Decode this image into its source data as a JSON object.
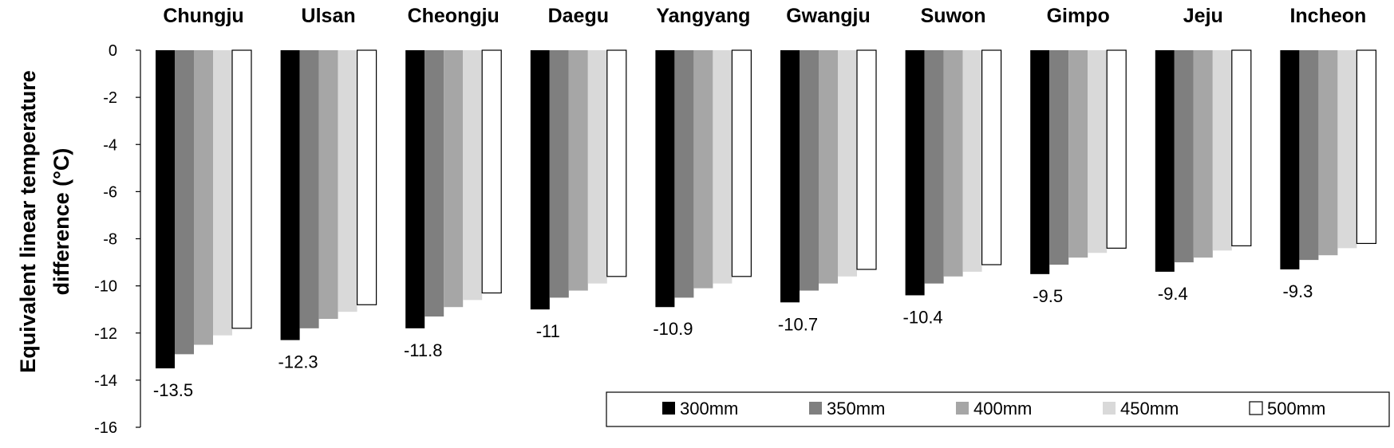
{
  "chart_data": {
    "type": "bar",
    "ylabel_line1": "Equivalent linear temperature",
    "ylabel_line2": "difference  (°C)",
    "ylim": [
      -16,
      0
    ],
    "yticks": [
      "0",
      "-2",
      "-4",
      "-6",
      "-8",
      "-10",
      "-12",
      "-14",
      "-16"
    ],
    "grid": false,
    "legend_position": "bottom-right",
    "categories": [
      "Chungju",
      "Ulsan",
      "Cheongju",
      "Daegu",
      "Yangyang",
      "Gwangju",
      "Suwon",
      "Gimpo",
      "Jeju",
      "Incheon"
    ],
    "series": [
      {
        "name": "300mm",
        "color": "#000000",
        "values": [
          -13.5,
          -12.3,
          -11.8,
          -11,
          -10.9,
          -10.7,
          -10.4,
          -9.5,
          -9.4,
          -9.3
        ]
      },
      {
        "name": "350mm",
        "color": "#7f7f7f",
        "values": [
          -12.9,
          -11.8,
          -11.3,
          -10.5,
          -10.5,
          -10.2,
          -9.9,
          -9.1,
          -9.0,
          -8.9
        ]
      },
      {
        "name": "400mm",
        "color": "#a6a6a6",
        "values": [
          -12.5,
          -11.4,
          -10.9,
          -10.2,
          -10.1,
          -9.9,
          -9.6,
          -8.8,
          -8.8,
          -8.7
        ]
      },
      {
        "name": "450mm",
        "color": "#d9d9d9",
        "values": [
          -12.1,
          -11.1,
          -10.6,
          -9.9,
          -9.9,
          -9.6,
          -9.4,
          -8.6,
          -8.5,
          -8.4
        ]
      },
      {
        "name": "500mm",
        "color": "#ffffff",
        "values": [
          -11.8,
          -10.8,
          -10.3,
          -9.6,
          -9.6,
          -9.3,
          -9.1,
          -8.4,
          -8.3,
          -8.2
        ]
      }
    ],
    "data_labels": [
      "-13.5",
      "-12.3",
      "-11.8",
      "-11",
      "-10.9",
      "-10.7",
      "-10.4",
      "-9.5",
      "-9.4",
      "-9.3"
    ]
  }
}
